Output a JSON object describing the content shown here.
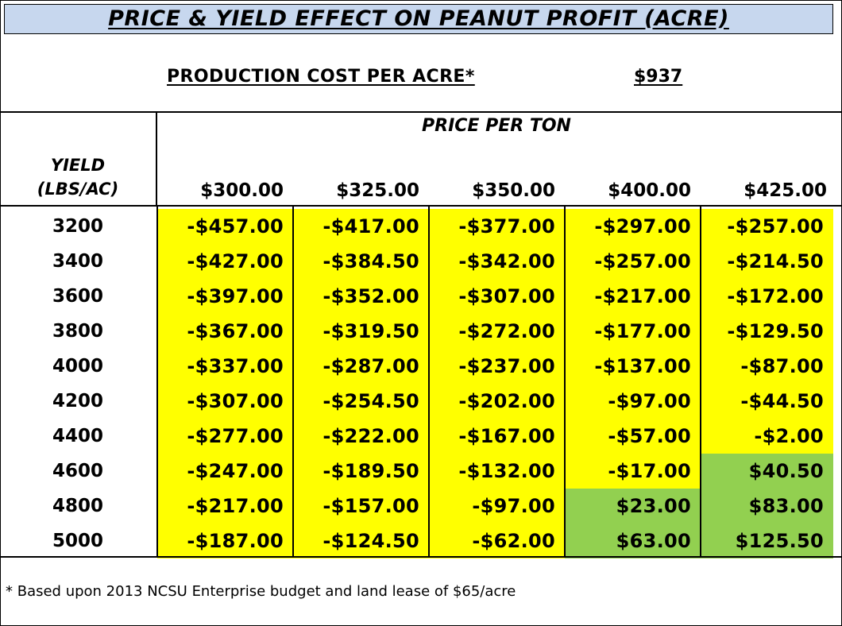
{
  "title": "PRICE & YIELD EFFECT ON PEANUT PROFIT (ACRE)",
  "production_cost": {
    "label": "PRODUCTION COST PER ACRE*",
    "value": "$937"
  },
  "table": {
    "price_header": "PRICE PER TON",
    "yield_header_line1": "YIELD",
    "yield_header_line2": "(LBS/AC)",
    "price_columns": [
      "$300.00",
      "$325.00",
      "$350.00",
      "$400.00",
      "$425.00"
    ],
    "colors": {
      "loss": "#ffff00",
      "profit": "#92d050"
    },
    "rows": [
      {
        "yield": "3200",
        "values": [
          "-$457.00",
          "-$417.00",
          "-$377.00",
          "-$297.00",
          "-$257.00"
        ]
      },
      {
        "yield": "3400",
        "values": [
          "-$427.00",
          "-$384.50",
          "-$342.00",
          "-$257.00",
          "-$214.50"
        ]
      },
      {
        "yield": "3600",
        "values": [
          "-$397.00",
          "-$352.00",
          "-$307.00",
          "-$217.00",
          "-$172.00"
        ]
      },
      {
        "yield": "3800",
        "values": [
          "-$367.00",
          "-$319.50",
          "-$272.00",
          "-$177.00",
          "-$129.50"
        ]
      },
      {
        "yield": "4000",
        "values": [
          "-$337.00",
          "-$287.00",
          "-$237.00",
          "-$137.00",
          "-$87.00"
        ]
      },
      {
        "yield": "4200",
        "values": [
          "-$307.00",
          "-$254.50",
          "-$202.00",
          "-$97.00",
          "-$44.50"
        ]
      },
      {
        "yield": "4400",
        "values": [
          "-$277.00",
          "-$222.00",
          "-$167.00",
          "-$57.00",
          "-$2.00"
        ]
      },
      {
        "yield": "4600",
        "values": [
          "-$247.00",
          "-$189.50",
          "-$132.00",
          "-$17.00",
          "$40.50"
        ]
      },
      {
        "yield": "4800",
        "values": [
          "-$217.00",
          "-$157.00",
          "-$97.00",
          "$23.00",
          "$83.00"
        ]
      },
      {
        "yield": "5000",
        "values": [
          "-$187.00",
          "-$124.50",
          "-$62.00",
          "$63.00",
          "$125.50"
        ]
      }
    ]
  },
  "footnote": "* Based upon 2013 NCSU Enterprise budget and land lease of $65/acre"
}
